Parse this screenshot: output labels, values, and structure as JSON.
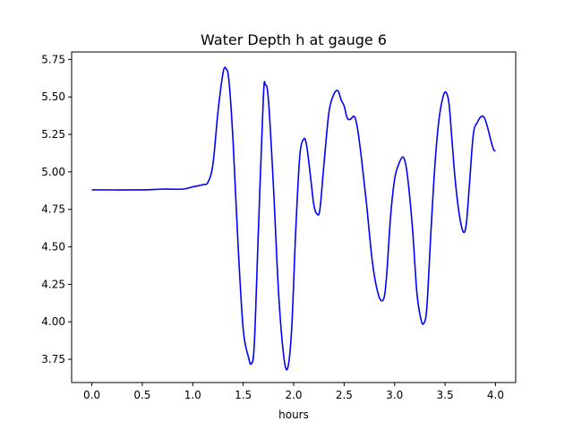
{
  "chart_data": {
    "type": "line",
    "title": "Water Depth h at gauge 6",
    "xlabel": "hours",
    "ylabel": "",
    "xlim": [
      -0.2,
      4.2
    ],
    "ylim": [
      3.595,
      5.8
    ],
    "grid": false,
    "x_ticks": [
      0.0,
      0.5,
      1.0,
      1.5,
      2.0,
      2.5,
      3.0,
      3.5,
      4.0
    ],
    "x_tick_labels": [
      "0.0",
      "0.5",
      "1.0",
      "1.5",
      "2.0",
      "2.5",
      "3.0",
      "3.5",
      "4.0"
    ],
    "y_ticks": [
      3.75,
      4.0,
      4.25,
      4.5,
      4.75,
      5.0,
      5.25,
      5.5,
      5.75
    ],
    "y_tick_labels": [
      "3.75",
      "4.00",
      "4.25",
      "4.50",
      "4.75",
      "5.00",
      "5.25",
      "5.50",
      "5.75"
    ],
    "series": [
      {
        "color": "#0000ff",
        "x": [
          0.0,
          0.5,
          0.7,
          0.9,
          1.0,
          1.1,
          1.15,
          1.2,
          1.25,
          1.3,
          1.33,
          1.36,
          1.4,
          1.45,
          1.5,
          1.55,
          1.58,
          1.61,
          1.65,
          1.7,
          1.72,
          1.75,
          1.8,
          1.85,
          1.9,
          1.94,
          1.98,
          2.02,
          2.06,
          2.1,
          2.13,
          2.17,
          2.2,
          2.23,
          2.26,
          2.3,
          2.35,
          2.4,
          2.44,
          2.47,
          2.5,
          2.53,
          2.56,
          2.6,
          2.63,
          2.67,
          2.72,
          2.78,
          2.84,
          2.89,
          2.92,
          2.96,
          3.0,
          3.04,
          3.08,
          3.11,
          3.14,
          3.18,
          3.22,
          3.26,
          3.29,
          3.32,
          3.36,
          3.4,
          3.44,
          3.48,
          3.51,
          3.54,
          3.57,
          3.6,
          3.64,
          3.68,
          3.71,
          3.74,
          3.78,
          3.82,
          3.86,
          3.89,
          3.92,
          3.95,
          3.98,
          4.0
        ],
        "y": [
          4.88,
          4.88,
          4.885,
          4.885,
          4.9,
          4.915,
          4.93,
          5.05,
          5.4,
          5.66,
          5.69,
          5.6,
          5.2,
          4.5,
          3.95,
          3.77,
          3.72,
          3.85,
          4.6,
          5.5,
          5.58,
          5.48,
          4.9,
          4.2,
          3.78,
          3.69,
          3.95,
          4.6,
          5.1,
          5.22,
          5.17,
          4.95,
          4.78,
          4.72,
          4.75,
          5.05,
          5.4,
          5.52,
          5.54,
          5.48,
          5.44,
          5.36,
          5.35,
          5.37,
          5.3,
          5.1,
          4.8,
          4.4,
          4.18,
          4.15,
          4.3,
          4.7,
          4.95,
          5.05,
          5.1,
          5.05,
          4.9,
          4.6,
          4.2,
          4.02,
          3.99,
          4.1,
          4.6,
          5.05,
          5.35,
          5.5,
          5.53,
          5.45,
          5.2,
          4.95,
          4.72,
          4.6,
          4.65,
          4.9,
          5.25,
          5.33,
          5.37,
          5.36,
          5.3,
          5.22,
          5.15,
          5.14
        ]
      }
    ]
  }
}
